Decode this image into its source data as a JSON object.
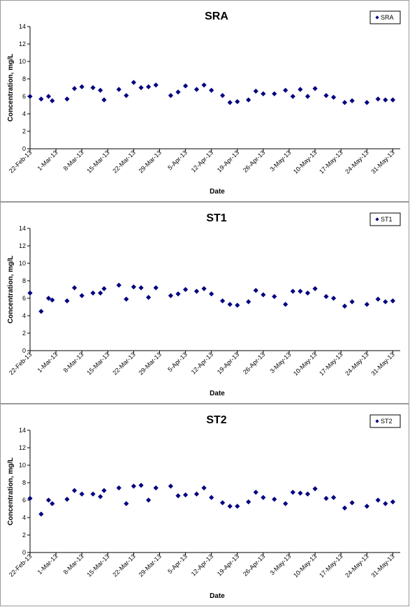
{
  "chart_data": [
    {
      "type": "scatter",
      "title": "SRA",
      "xlabel": "Date",
      "ylabel": "Concentration, mg/L",
      "ylim": [
        0,
        14
      ],
      "yticks": [
        "0",
        "2",
        "4",
        "6",
        "8",
        "10",
        "12",
        "14"
      ],
      "xlim": [
        "2013-02-22",
        "2013-06-02"
      ],
      "xticks": [
        "22-Feb-13",
        "1-Mar-13",
        "8-Mar-13",
        "15-Mar-13",
        "22-Mar-13",
        "29-Mar-13",
        "5-Apr-13",
        "12-Apr-13",
        "19-Apr-13",
        "26-Apr-13",
        "3-May-13",
        "10-May-13",
        "17-May-13",
        "24-May-13",
        "31-May-13"
      ],
      "grid": false,
      "legend": "top-right",
      "series": [
        {
          "name": "SRA",
          "color": "#000080",
          "x": [
            "2013-02-22",
            "2013-02-25",
            "2013-02-27",
            "2013-02-28",
            "2013-03-04",
            "2013-03-06",
            "2013-03-08",
            "2013-03-11",
            "2013-03-13",
            "2013-03-14",
            "2013-03-18",
            "2013-03-20",
            "2013-03-22",
            "2013-03-24",
            "2013-03-26",
            "2013-03-28",
            "2013-04-01",
            "2013-04-03",
            "2013-04-05",
            "2013-04-08",
            "2013-04-10",
            "2013-04-12",
            "2013-04-15",
            "2013-04-17",
            "2013-04-19",
            "2013-04-22",
            "2013-04-24",
            "2013-04-26",
            "2013-04-29",
            "2013-05-02",
            "2013-05-04",
            "2013-05-06",
            "2013-05-08",
            "2013-05-10",
            "2013-05-13",
            "2013-05-15",
            "2013-05-18",
            "2013-05-20",
            "2013-05-24",
            "2013-05-27",
            "2013-05-29",
            "2013-05-31"
          ],
          "y": [
            6.0,
            5.7,
            6.0,
            5.5,
            5.7,
            6.9,
            7.1,
            7.0,
            6.7,
            5.6,
            6.8,
            6.1,
            7.6,
            7.0,
            7.1,
            7.3,
            6.1,
            6.5,
            7.2,
            6.8,
            7.3,
            6.7,
            6.1,
            5.3,
            5.4,
            5.6,
            6.6,
            6.3,
            6.3,
            6.7,
            6.0,
            6.8,
            6.0,
            6.9,
            6.1,
            5.9,
            5.3,
            5.5,
            5.3,
            5.7,
            5.6,
            5.6
          ]
        }
      ]
    },
    {
      "type": "scatter",
      "title": "ST1",
      "xlabel": "Date",
      "ylabel": "Concentration, mg/L",
      "ylim": [
        0,
        14
      ],
      "yticks": [
        "0",
        "2",
        "4",
        "6",
        "8",
        "10",
        "12",
        "14"
      ],
      "xlim": [
        "2013-02-22",
        "2013-06-02"
      ],
      "xticks": [
        "22-Feb-13",
        "1-Mar-13",
        "8-Mar-13",
        "15-Mar-13",
        "22-Mar-13",
        "29-Mar-13",
        "5-Apr-13",
        "12-Apr-13",
        "19-Apr-13",
        "26-Apr-13",
        "3-May-13",
        "10-May-13",
        "17-May-13",
        "24-May-13",
        "31-May-13"
      ],
      "grid": false,
      "legend": "top-right",
      "series": [
        {
          "name": "ST1",
          "color": "#000080",
          "x": [
            "2013-02-22",
            "2013-02-25",
            "2013-02-27",
            "2013-02-28",
            "2013-03-04",
            "2013-03-06",
            "2013-03-08",
            "2013-03-11",
            "2013-03-13",
            "2013-03-14",
            "2013-03-18",
            "2013-03-20",
            "2013-03-22",
            "2013-03-24",
            "2013-03-26",
            "2013-03-28",
            "2013-04-01",
            "2013-04-03",
            "2013-04-05",
            "2013-04-08",
            "2013-04-10",
            "2013-04-12",
            "2013-04-15",
            "2013-04-17",
            "2013-04-19",
            "2013-04-22",
            "2013-04-24",
            "2013-04-26",
            "2013-04-29",
            "2013-05-02",
            "2013-05-04",
            "2013-05-06",
            "2013-05-08",
            "2013-05-10",
            "2013-05-13",
            "2013-05-15",
            "2013-05-18",
            "2013-05-20",
            "2013-05-24",
            "2013-05-27",
            "2013-05-29",
            "2013-05-31"
          ],
          "y": [
            6.6,
            4.5,
            6.0,
            5.8,
            5.7,
            7.2,
            6.3,
            6.6,
            6.6,
            7.1,
            7.5,
            5.9,
            7.3,
            7.2,
            6.1,
            7.2,
            6.3,
            6.5,
            7.0,
            6.8,
            7.1,
            6.5,
            5.7,
            5.3,
            5.2,
            5.6,
            6.9,
            6.4,
            6.2,
            5.3,
            6.8,
            6.8,
            6.6,
            7.1,
            6.2,
            6.0,
            5.1,
            5.6,
            5.3,
            5.9,
            5.6,
            5.7
          ]
        }
      ]
    },
    {
      "type": "scatter",
      "title": "ST2",
      "xlabel": "Date",
      "ylabel": "Concentration, mg/L",
      "ylim": [
        0,
        14
      ],
      "yticks": [
        "0",
        "2",
        "4",
        "6",
        "8",
        "10",
        "12",
        "14"
      ],
      "xlim": [
        "2013-02-22",
        "2013-06-02"
      ],
      "xticks": [
        "22-Feb-13",
        "1-Mar-13",
        "8-Mar-13",
        "15-Mar-13",
        "22-Mar-13",
        "29-Mar-13",
        "5-Apr-13",
        "12-Apr-13",
        "19-Apr-13",
        "26-Apr-13",
        "3-May-13",
        "10-May-13",
        "17-May-13",
        "24-May-13",
        "31-May-13"
      ],
      "grid": false,
      "legend": "top-right",
      "series": [
        {
          "name": "ST2",
          "color": "#000080",
          "x": [
            "2013-02-22",
            "2013-02-25",
            "2013-02-27",
            "2013-02-28",
            "2013-03-04",
            "2013-03-06",
            "2013-03-08",
            "2013-03-11",
            "2013-03-13",
            "2013-03-14",
            "2013-03-18",
            "2013-03-20",
            "2013-03-22",
            "2013-03-24",
            "2013-03-26",
            "2013-03-28",
            "2013-04-01",
            "2013-04-03",
            "2013-04-05",
            "2013-04-08",
            "2013-04-10",
            "2013-04-12",
            "2013-04-15",
            "2013-04-17",
            "2013-04-19",
            "2013-04-22",
            "2013-04-24",
            "2013-04-26",
            "2013-04-29",
            "2013-05-02",
            "2013-05-04",
            "2013-05-06",
            "2013-05-08",
            "2013-05-10",
            "2013-05-13",
            "2013-05-15",
            "2013-05-18",
            "2013-05-20",
            "2013-05-24",
            "2013-05-27",
            "2013-05-29",
            "2013-05-31"
          ],
          "y": [
            6.2,
            4.4,
            6.0,
            5.6,
            6.1,
            7.1,
            6.7,
            6.7,
            6.4,
            7.1,
            7.4,
            5.6,
            7.6,
            7.7,
            6.0,
            7.4,
            7.6,
            6.5,
            6.6,
            6.7,
            7.4,
            6.3,
            5.7,
            5.3,
            5.3,
            5.8,
            6.9,
            6.3,
            6.1,
            5.6,
            6.9,
            6.8,
            6.7,
            7.3,
            6.2,
            6.3,
            5.1,
            5.7,
            5.3,
            6.0,
            5.6,
            5.8
          ]
        }
      ]
    }
  ]
}
